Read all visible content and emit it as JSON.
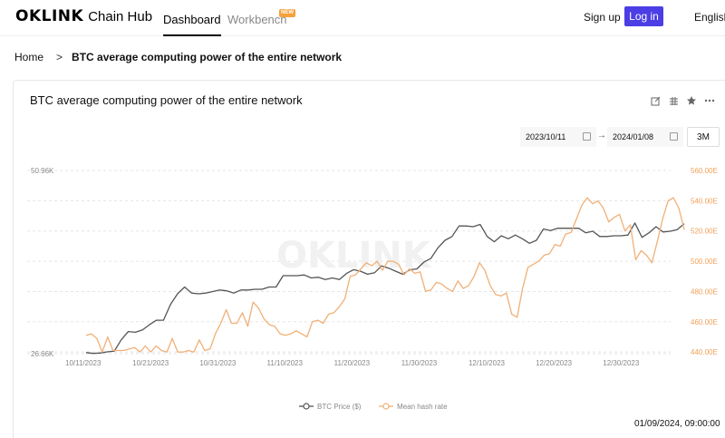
{
  "header": {
    "logo_text": "OKLINK",
    "logo_sub": "Chain Hub",
    "nav": [
      {
        "label": "Dashboard",
        "active": true
      },
      {
        "label": "Workbench",
        "badge": "NEW"
      }
    ],
    "signup_label": "Sign up",
    "login_label": "Log in",
    "language": "English"
  },
  "breadcrumb": {
    "home": "Home",
    "separator": ">",
    "current": "BTC average computing power of the entire network"
  },
  "card": {
    "title": "BTC average computing power of the entire network",
    "tools": [
      "edit-icon",
      "grid-icon",
      "star-icon",
      "more-icon"
    ],
    "date_start": "2023/10/11",
    "date_arrow": "→",
    "date_end": "2024/01/08",
    "range_button": "3M",
    "timestamp": "01/09/2024, 09:00:00"
  },
  "colors": {
    "accent": "#4b3ee4",
    "price_line": "#555555",
    "hash_line": "#f0b077",
    "right_axis_text": "#f0a05a",
    "grid": "#e5e5e5"
  },
  "chart_data": {
    "type": "line",
    "title": "",
    "x_tick_labels": [
      "10/11/2023",
      "10/21/2023",
      "10/31/2023",
      "11/10/2023",
      "11/20/2023",
      "11/30/2023",
      "12/10/2023",
      "12/20/2023",
      "12/30/2023"
    ],
    "y_left_tick_labels": [
      "50.96K",
      "26.66K"
    ],
    "y_right_tick_labels": [
      "560.00E",
      "540.00E",
      "520.00E",
      "500.00E",
      "480.00E",
      "460.00E",
      "440.00E"
    ],
    "y_left_range": [
      26660,
      50960
    ],
    "y_right_range": [
      438.9,
      560
    ],
    "grid": true,
    "legend_position": "bottom-center",
    "series": [
      {
        "name": "BTC Price ($)",
        "axis": "left",
        "values": [
          26800,
          26700,
          26750,
          26900,
          27000,
          28500,
          29600,
          29500,
          29800,
          30500,
          31100,
          31100,
          33200,
          34600,
          35500,
          34700,
          34600,
          34700,
          34900,
          35100,
          35000,
          34700,
          35100,
          35100,
          35200,
          35200,
          35500,
          35500,
          37000,
          37000,
          37000,
          37100,
          36700,
          36800,
          36500,
          36700,
          36500,
          37300,
          37800,
          37600,
          37200,
          37400,
          38300,
          38000,
          37600,
          37200,
          37800,
          37900,
          38800,
          39300,
          40700,
          41700,
          42200,
          43600,
          43600,
          43500,
          43800,
          42200,
          41500,
          42300,
          41900,
          42400,
          41900,
          41300,
          41700,
          43200,
          43000,
          43300,
          43300,
          43300,
          43300,
          42700,
          42900,
          42200,
          42200,
          42300,
          42300,
          42400,
          44000,
          42100,
          42700,
          43500,
          42800,
          42900,
          43100,
          43900
        ]
      },
      {
        "name": "Mean hash rate",
        "axis": "right",
        "values": [
          451,
          452,
          449,
          440,
          450,
          441,
          441,
          441,
          442,
          443,
          440,
          444,
          440,
          444,
          441,
          440,
          449,
          440,
          440,
          441,
          440,
          448,
          441,
          442,
          452,
          459,
          468,
          459,
          459,
          466,
          457,
          473,
          469,
          462,
          458,
          457,
          452,
          451,
          452,
          454,
          452,
          450,
          460,
          461,
          459,
          465,
          466,
          470,
          475,
          490,
          491,
          495,
          499,
          497,
          500,
          494,
          500,
          500,
          498,
          491,
          495,
          492,
          493,
          480,
          481,
          486,
          485,
          482,
          480,
          487,
          482,
          484,
          490,
          499,
          494,
          484,
          478,
          477,
          479,
          465,
          463,
          482,
          496,
          498,
          500,
          504,
          505,
          511,
          510,
          518,
          519,
          528,
          537,
          542,
          538,
          540,
          535,
          526,
          529,
          531,
          520,
          524,
          501,
          507,
          504,
          499,
          513,
          528,
          540,
          542,
          535,
          521
        ]
      }
    ],
    "watermark": "OKLINK"
  }
}
